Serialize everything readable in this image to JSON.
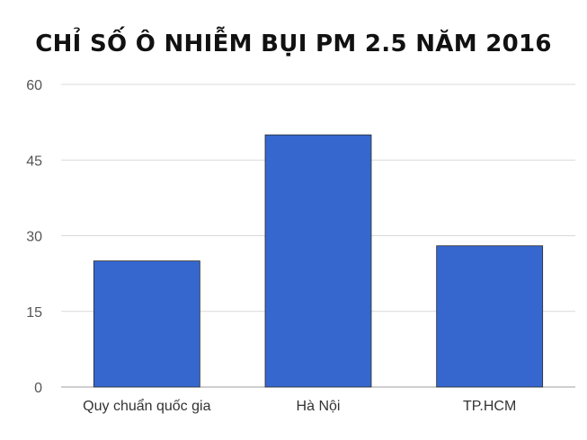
{
  "chart_data": {
    "type": "bar",
    "title": "CHỈ SỐ Ô NHIỄM BỤI PM 2.5 NĂM 2016",
    "categories": [
      "Quy chuẩn quốc gia",
      "Hà Nội",
      "TP.HCM"
    ],
    "values": [
      25,
      50,
      28
    ],
    "ylim": [
      0,
      60
    ],
    "yticks": [
      0,
      15,
      30,
      45,
      60
    ],
    "xlabel": "",
    "ylabel": "",
    "grid": true,
    "legend": "none",
    "bar_color": "#3567cf",
    "grid_color": "#d9d9d9"
  }
}
